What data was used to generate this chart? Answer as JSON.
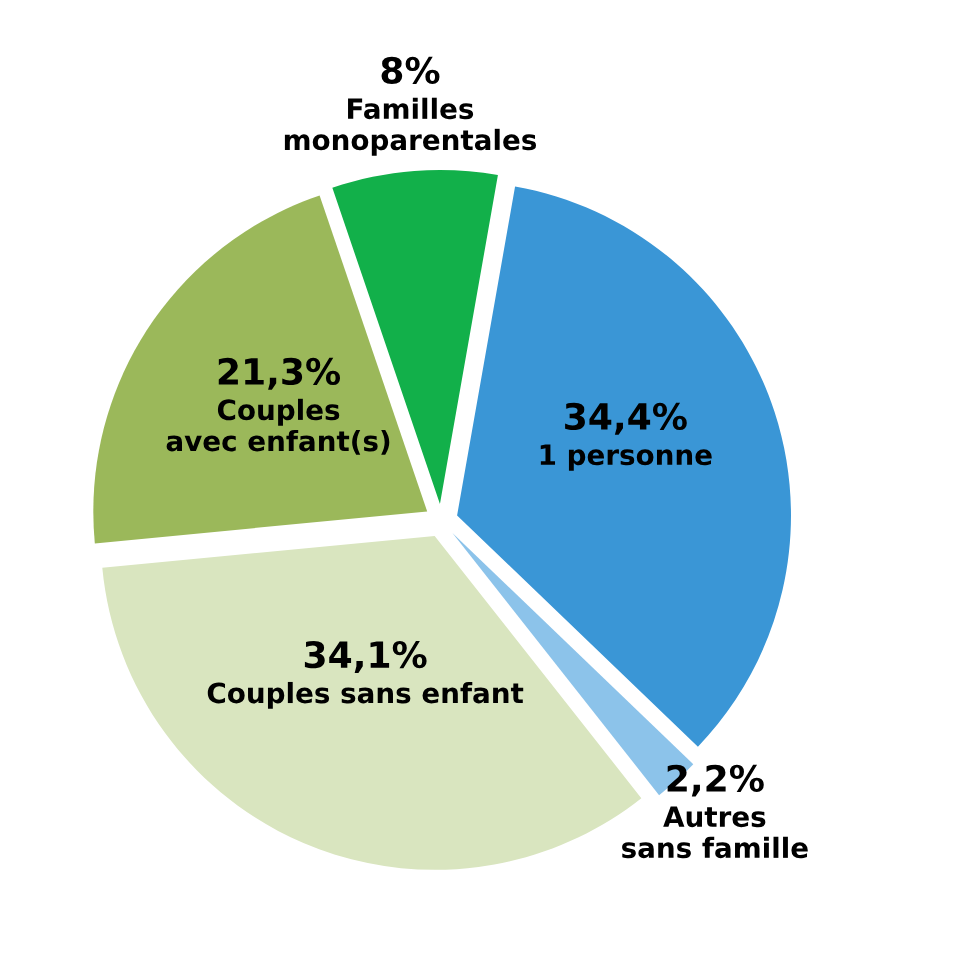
{
  "chart_data": {
    "type": "pie",
    "categories": [
      "1 personne",
      "Autres\nsans famille",
      "Couples sans enfant",
      "Couples\navec enfant(s)",
      "Familles\nmonoparentales"
    ],
    "values": [
      34.4,
      2.2,
      34.1,
      21.3,
      8
    ],
    "value_labels": [
      "34,4%",
      "2,2%",
      "34,1%",
      "21,3%",
      "8%"
    ],
    "colors": [
      "#3a96d6",
      "#8cc3ea",
      "#d9e5bf",
      "#9bb85a",
      "#12b04a"
    ],
    "legend": false
  }
}
